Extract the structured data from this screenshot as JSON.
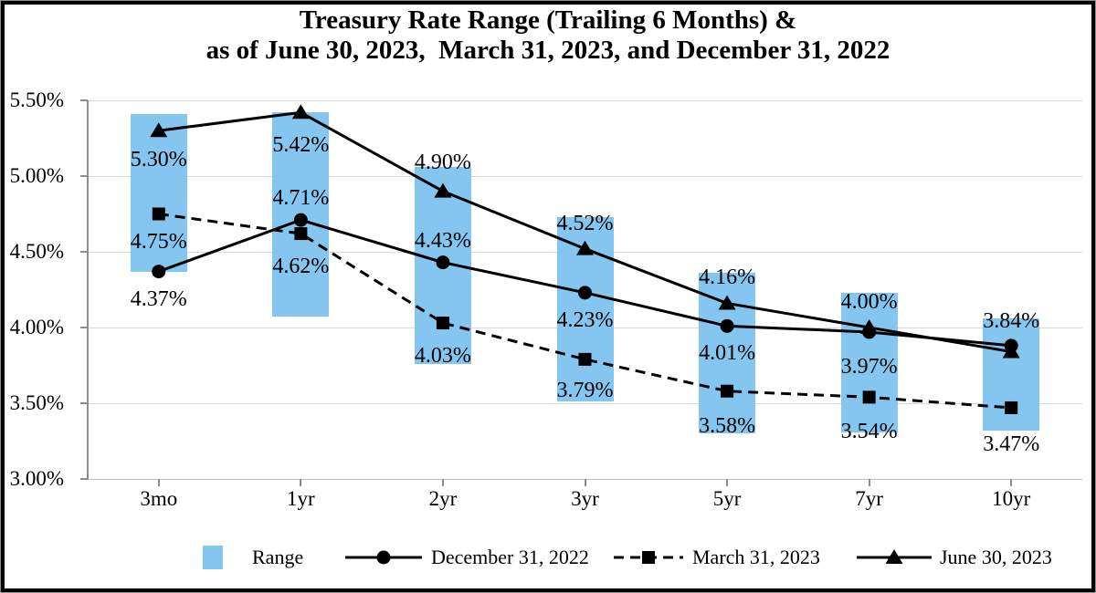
{
  "title": {
    "line1": "Treasury Rate Range (Trailing 6 Months) &",
    "line2": "as of June 30, 2023,  March 31, 2023, and December 31, 2022"
  },
  "chart_data": {
    "type": "combo-range-bar-line",
    "categories": [
      "3mo",
      "1yr",
      "2yr",
      "3yr",
      "5yr",
      "7yr",
      "10yr"
    ],
    "y_axis": {
      "min": 3.0,
      "max": 5.5,
      "step": 0.5,
      "tick_labels": [
        "5.50%",
        "5.00%",
        "4.50%",
        "4.00%",
        "3.50%",
        "3.00%"
      ],
      "grid": true
    },
    "range_bars": {
      "name": "Range",
      "color": "#85C6F0",
      "low": [
        4.37,
        4.07,
        3.76,
        3.51,
        3.3,
        3.31,
        3.32
      ],
      "high": [
        5.41,
        5.42,
        5.06,
        4.73,
        4.36,
        4.23,
        4.06
      ]
    },
    "series": [
      {
        "name": "December 31, 2022",
        "marker": "circle",
        "line_style": "solid",
        "color": "#000000",
        "values": [
          4.37,
          4.71,
          4.43,
          4.23,
          4.01,
          3.97,
          3.88
        ],
        "labels": [
          "4.37%",
          "4.71%",
          "4.43%",
          "4.23%",
          "4.01%",
          "3.97%",
          null
        ],
        "label_pos": [
          "below",
          "above",
          "above",
          "below",
          "below",
          "below",
          null
        ],
        "label_dy": [
          0,
          0,
          0,
          0,
          0,
          8,
          0
        ]
      },
      {
        "name": "March 31, 2023",
        "marker": "square",
        "line_style": "dashed",
        "color": "#000000",
        "values": [
          4.75,
          4.62,
          4.03,
          3.79,
          3.58,
          3.54,
          3.47
        ],
        "labels": [
          "4.75%",
          "4.62%",
          "4.03%",
          "3.79%",
          "3.58%",
          "3.54%",
          "3.47%"
        ],
        "label_pos": [
          "below",
          "below",
          "below",
          "below",
          "below",
          "below",
          "below"
        ],
        "label_dy": [
          0,
          6,
          6,
          4,
          8,
          8,
          10
        ]
      },
      {
        "name": "June 30, 2023",
        "marker": "triangle",
        "line_style": "solid",
        "color": "#000000",
        "values": [
          5.3,
          5.42,
          4.9,
          4.52,
          4.16,
          4.0,
          3.84
        ],
        "labels": [
          "5.30%",
          "5.42%",
          "4.90%",
          "4.52%",
          "4.16%",
          "4.00%",
          "3.84%"
        ],
        "label_pos": [
          "below",
          "below",
          "above",
          "above",
          "above",
          "above",
          "above"
        ],
        "label_dy": [
          2,
          6,
          -8,
          -4,
          -4,
          -4,
          -10
        ]
      }
    ],
    "legend": [
      {
        "label": "Range",
        "swatch": "range-box"
      },
      {
        "label": "December 31, 2022",
        "swatch": "solid-line-circle"
      },
      {
        "label": "March 31, 2023",
        "swatch": "dashed-line-square"
      },
      {
        "label": "June 30, 2023",
        "swatch": "solid-line-triangle"
      }
    ]
  }
}
